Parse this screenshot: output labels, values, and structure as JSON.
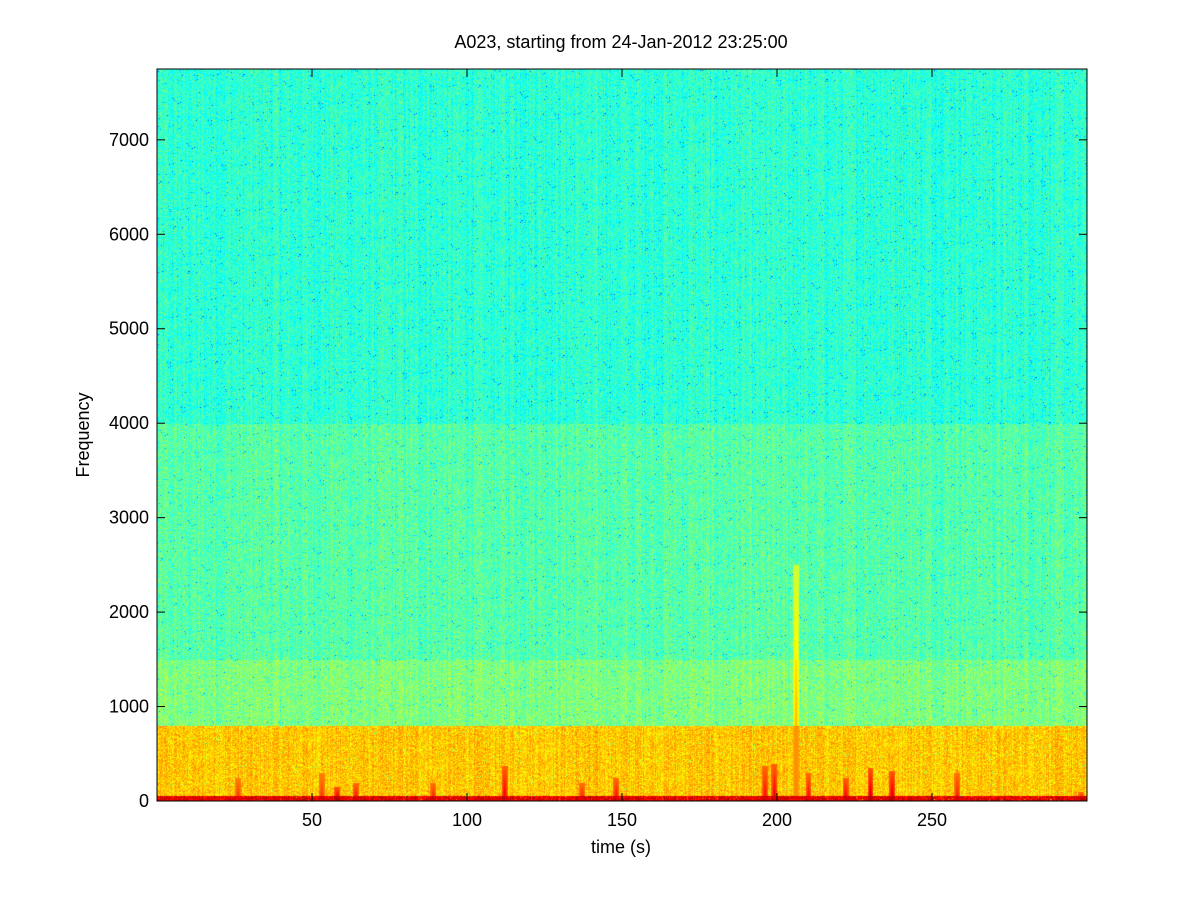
{
  "chart_data": {
    "type": "heatmap",
    "title": "A023, starting from 24-Jan-2012 23:25:00",
    "xlabel": "time (s)",
    "ylabel": "Frequency",
    "xlim": [
      0,
      300
    ],
    "ylim": [
      0,
      7750
    ],
    "x_ticks": [
      50,
      100,
      150,
      200,
      250
    ],
    "y_ticks": [
      0,
      1000,
      2000,
      3000,
      4000,
      5000,
      6000,
      7000
    ],
    "colormap": "jet",
    "grid": false,
    "frequency_bands": [
      {
        "name": "",
        "from": 0,
        "to": 60,
        "level": 0.9
      },
      {
        "name": "",
        "from": 60,
        "to": 800,
        "level": 0.68
      },
      {
        "name": "",
        "from": 800,
        "to": 1500,
        "level": 0.5
      },
      {
        "name": "",
        "from": 1500,
        "to": 4000,
        "level": 0.46
      },
      {
        "name": "",
        "from": 4000,
        "to": 7750,
        "level": 0.42
      }
    ],
    "transient_events": [
      {
        "time": 26,
        "max_freq": 250,
        "level": 0.85
      },
      {
        "time": 53,
        "max_freq": 300,
        "level": 0.85
      },
      {
        "time": 58,
        "max_freq": 150,
        "level": 0.95
      },
      {
        "time": 64,
        "max_freq": 200,
        "level": 0.9
      },
      {
        "time": 89,
        "max_freq": 200,
        "level": 0.88
      },
      {
        "time": 112,
        "max_freq": 380,
        "level": 0.92
      },
      {
        "time": 137,
        "max_freq": 200,
        "level": 0.88
      },
      {
        "time": 148,
        "max_freq": 250,
        "level": 0.9
      },
      {
        "time": 196,
        "max_freq": 380,
        "level": 0.9
      },
      {
        "time": 199,
        "max_freq": 400,
        "level": 0.92
      },
      {
        "time": 206,
        "max_freq": 2500,
        "level": 0.75
      },
      {
        "time": 210,
        "max_freq": 300,
        "level": 0.9
      },
      {
        "time": 222,
        "max_freq": 250,
        "level": 0.92
      },
      {
        "time": 230,
        "max_freq": 350,
        "level": 0.95
      },
      {
        "time": 237,
        "max_freq": 320,
        "level": 0.95
      },
      {
        "time": 258,
        "max_freq": 300,
        "level": 0.88
      },
      {
        "time": 298,
        "max_freq": 100,
        "level": 0.9
      }
    ]
  }
}
